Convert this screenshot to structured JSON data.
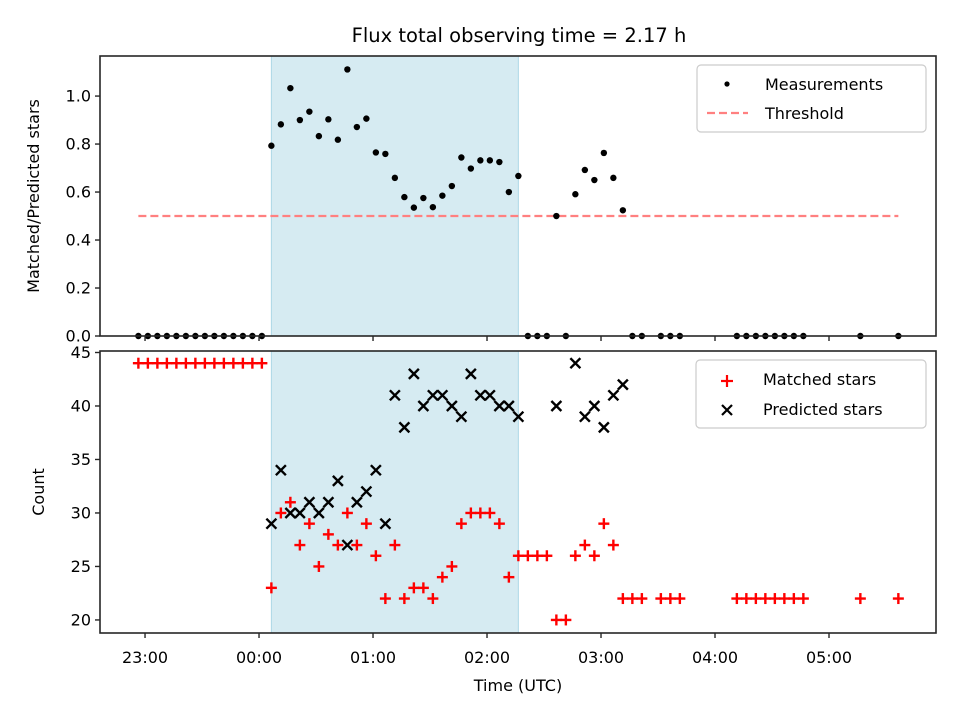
{
  "chart_data": [
    {
      "type": "scatter",
      "title": "Flux total observing time = 2.17 h",
      "xlabel": "",
      "ylabel": "Matched/Predicted stars",
      "ylim": [
        0,
        1.167
      ],
      "yticks": [
        "0.0",
        "0.2",
        "0.4",
        "0.6",
        "0.8",
        "1.0"
      ],
      "ytick_values": [
        0,
        0.2,
        0.4,
        0.6,
        0.8,
        1.0
      ],
      "xlim": [
        "22:36:18",
        "05:56:19"
      ],
      "grid": false,
      "legend_position": "top-right",
      "legend": [
        {
          "label": "Measurements",
          "marker": "dot",
          "color": "#000000"
        },
        {
          "label": "Threshold",
          "marker": "dashed-line",
          "color": "#ff8080"
        }
      ],
      "threshold": {
        "value": 0.5,
        "from": "22:56:30",
        "to": "05:36:30",
        "color": "#ff8080"
      },
      "shaded_interval": {
        "from": "00:06:30",
        "to": "02:16:30",
        "color": "#add8e6"
      },
      "series": [
        {
          "name": "Measurements",
          "color": "#000000",
          "x": [
            "22:56:30",
            "23:01:30",
            "23:06:30",
            "23:11:30",
            "23:16:30",
            "23:21:30",
            "23:26:30",
            "23:31:30",
            "23:36:30",
            "23:41:30",
            "23:46:30",
            "23:51:30",
            "23:56:30",
            "00:01:30",
            "00:06:30",
            "00:11:30",
            "00:16:30",
            "00:21:30",
            "00:26:30",
            "00:31:30",
            "00:36:30",
            "00:41:30",
            "00:46:30",
            "00:51:30",
            "00:56:30",
            "01:01:30",
            "01:06:30",
            "01:11:30",
            "01:16:30",
            "01:21:30",
            "01:26:30",
            "01:31:30",
            "01:36:30",
            "01:41:30",
            "01:46:30",
            "01:51:30",
            "01:56:30",
            "02:01:30",
            "02:06:30",
            "02:11:30",
            "02:16:30",
            "02:21:30",
            "02:26:30",
            "02:31:30",
            "02:36:30",
            "02:41:30",
            "02:46:30",
            "02:51:30",
            "02:56:30",
            "03:01:30",
            "03:06:30",
            "03:11:30",
            "03:16:30",
            "03:21:30",
            "03:31:30",
            "03:36:30",
            "03:41:30",
            "04:11:30",
            "04:16:30",
            "04:21:30",
            "04:26:30",
            "04:31:30",
            "04:36:30",
            "04:41:30",
            "04:46:30",
            "05:16:30",
            "05:36:30"
          ],
          "y": [
            0,
            0,
            0,
            0,
            0,
            0,
            0,
            0,
            0,
            0,
            0,
            0,
            0,
            0,
            0.793,
            0.882,
            1.033,
            0.9,
            0.935,
            0.833,
            0.903,
            0.818,
            1.111,
            0.871,
            0.906,
            0.765,
            0.759,
            0.659,
            0.579,
            0.535,
            0.575,
            0.537,
            0.585,
            0.625,
            0.744,
            0.698,
            0.732,
            0.732,
            0.725,
            0.6,
            0.667,
            0,
            0,
            0,
            0.5,
            0,
            0.591,
            0.692,
            0.65,
            0.763,
            0.659,
            0.524,
            0,
            0,
            0,
            0,
            0,
            0,
            0,
            0,
            0,
            0,
            0,
            0,
            0,
            0,
            0
          ]
        }
      ]
    },
    {
      "type": "scatter",
      "title": "",
      "xlabel": "Time (UTC)",
      "ylabel": "Count",
      "ylim": [
        18.78,
        45.14
      ],
      "yticks": [
        "20",
        "25",
        "30",
        "35",
        "40",
        "45"
      ],
      "ytick_values": [
        20,
        25,
        30,
        35,
        40,
        45
      ],
      "xlim": [
        "22:36:18",
        "05:56:19"
      ],
      "xticks": [
        "23:00",
        "00:00",
        "01:00",
        "02:00",
        "03:00",
        "04:00",
        "05:00"
      ],
      "grid": false,
      "legend_position": "top-right",
      "legend": [
        {
          "label": "Matched stars",
          "marker": "plus",
          "color": "#ff0000"
        },
        {
          "label": "Predicted stars",
          "marker": "x",
          "color": "#000000"
        }
      ],
      "shaded_interval": {
        "from": "00:06:30",
        "to": "02:16:30",
        "color": "#add8e6"
      },
      "series": [
        {
          "name": "Matched stars",
          "marker": "plus",
          "color": "#ff0000",
          "x": [
            "22:56:30",
            "23:01:30",
            "23:06:30",
            "23:11:30",
            "23:16:30",
            "23:21:30",
            "23:26:30",
            "23:31:30",
            "23:36:30",
            "23:41:30",
            "23:46:30",
            "23:51:30",
            "23:56:30",
            "00:01:30",
            "00:06:30",
            "00:11:30",
            "00:16:30",
            "00:21:30",
            "00:26:30",
            "00:31:30",
            "00:36:30",
            "00:41:30",
            "00:46:30",
            "00:51:30",
            "00:56:30",
            "01:01:30",
            "01:06:30",
            "01:11:30",
            "01:16:30",
            "01:21:30",
            "01:26:30",
            "01:31:30",
            "01:36:30",
            "01:41:30",
            "01:46:30",
            "01:51:30",
            "01:56:30",
            "02:01:30",
            "02:06:30",
            "02:11:30",
            "02:16:30",
            "02:21:30",
            "02:26:30",
            "02:31:30",
            "02:36:30",
            "02:41:30",
            "02:46:30",
            "02:51:30",
            "02:56:30",
            "03:01:30",
            "03:06:30",
            "03:11:30",
            "03:16:30",
            "03:21:30",
            "03:31:30",
            "03:36:30",
            "03:41:30",
            "04:11:30",
            "04:16:30",
            "04:21:30",
            "04:26:30",
            "04:31:30",
            "04:36:30",
            "04:41:30",
            "04:46:30",
            "05:16:30",
            "05:36:30"
          ],
          "y": [
            44,
            44,
            44,
            44,
            44,
            44,
            44,
            44,
            44,
            44,
            44,
            44,
            44,
            44,
            23,
            30,
            31,
            27,
            29,
            25,
            28,
            27,
            30,
            27,
            29,
            26,
            22,
            27,
            22,
            23,
            23,
            22,
            24,
            25,
            29,
            30,
            30,
            30,
            29,
            24,
            26,
            26,
            26,
            26,
            20,
            20,
            26,
            27,
            26,
            29,
            27,
            22,
            22,
            22,
            22,
            22,
            22,
            22,
            22,
            22,
            22,
            22,
            22,
            22,
            22,
            22,
            22
          ]
        },
        {
          "name": "Predicted stars",
          "marker": "x",
          "color": "#000000",
          "x": [
            "00:06:30",
            "00:11:30",
            "00:16:30",
            "00:21:30",
            "00:26:30",
            "00:31:30",
            "00:36:30",
            "00:41:30",
            "00:46:30",
            "00:51:30",
            "00:56:30",
            "01:01:30",
            "01:06:30",
            "01:11:30",
            "01:16:30",
            "01:21:30",
            "01:26:30",
            "01:31:30",
            "01:36:30",
            "01:41:30",
            "01:46:30",
            "01:51:30",
            "01:56:30",
            "02:01:30",
            "02:06:30",
            "02:11:30",
            "02:16:30",
            "02:36:30",
            "02:46:30",
            "02:51:30",
            "02:56:30",
            "03:01:30",
            "03:06:30",
            "03:11:30"
          ],
          "y": [
            29,
            34,
            30,
            30,
            31,
            30,
            31,
            33,
            27,
            31,
            32,
            34,
            29,
            41,
            38,
            43,
            40,
            41,
            41,
            40,
            39,
            43,
            41,
            41,
            40,
            40,
            39,
            40,
            44,
            39,
            40,
            38,
            41,
            42
          ]
        }
      ]
    }
  ]
}
